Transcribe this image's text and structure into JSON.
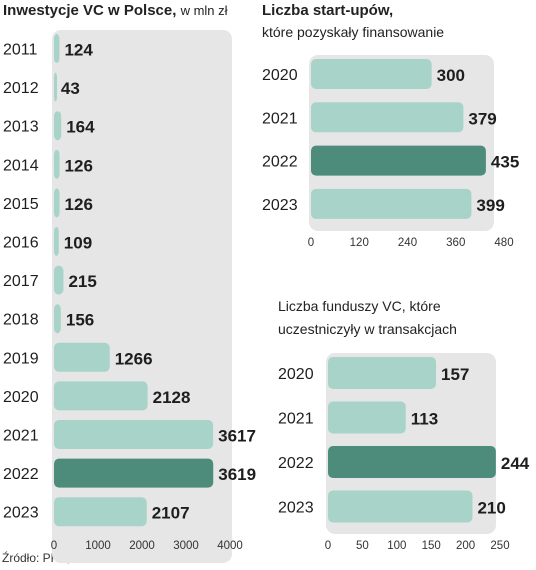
{
  "colors": {
    "panel_bg": "#e6e6e6",
    "bar": "#a8d3c9",
    "bar_highlight": "#4d8c7b",
    "text": "#1e1e1e"
  },
  "source": "Źródło: PFR, Inovo",
  "chart_data": [
    {
      "type": "bar",
      "orientation": "horizontal",
      "title": "Inwestycje VC w Polsce,",
      "subtitle": "w mln zł",
      "categories": [
        "2011",
        "2012",
        "2013",
        "2014",
        "2015",
        "2016",
        "2017",
        "2018",
        "2019",
        "2020",
        "2021",
        "2022",
        "2023"
      ],
      "values": [
        124,
        43,
        164,
        126,
        126,
        109,
        215,
        156,
        1266,
        2128,
        3617,
        3619,
        2107
      ],
      "value_labels": [
        "124",
        "43",
        "164",
        "126",
        "126",
        "109",
        "215",
        "156",
        "1266",
        "2128",
        "3617",
        "3619",
        "2107"
      ],
      "highlight": "2022",
      "xlim": [
        0,
        4000
      ],
      "xticks": [
        0,
        1000,
        2000,
        3000,
        4000
      ],
      "xtick_labels": [
        "0",
        "1000",
        "2000",
        "3000",
        "4000"
      ],
      "grid": false
    },
    {
      "type": "bar",
      "orientation": "horizontal",
      "title": "Liczba start-upów,",
      "subtitle": "które pozyskały finansowanie",
      "categories": [
        "2020",
        "2021",
        "2022",
        "2023"
      ],
      "values": [
        300,
        379,
        435,
        399
      ],
      "value_labels": [
        "300",
        "379",
        "435",
        "399"
      ],
      "highlight": "2022",
      "xlim": [
        0,
        480
      ],
      "xticks": [
        0,
        120,
        240,
        360,
        480
      ],
      "xtick_labels": [
        "0",
        "120",
        "240",
        "360",
        "480"
      ],
      "grid": false
    },
    {
      "type": "bar",
      "orientation": "horizontal",
      "title_lines": [
        "Liczba funduszy VC, które",
        "uczestniczyły w transakcjach"
      ],
      "categories": [
        "2020",
        "2021",
        "2022",
        "2023"
      ],
      "values": [
        157,
        113,
        244,
        210
      ],
      "value_labels": [
        "157",
        "113",
        "244",
        "210"
      ],
      "highlight": "2022",
      "xlim": [
        0,
        250
      ],
      "xticks": [
        0,
        50,
        100,
        150,
        200,
        250
      ],
      "xtick_labels": [
        "0",
        "50",
        "100",
        "150",
        "200",
        "250"
      ],
      "grid": false
    }
  ]
}
